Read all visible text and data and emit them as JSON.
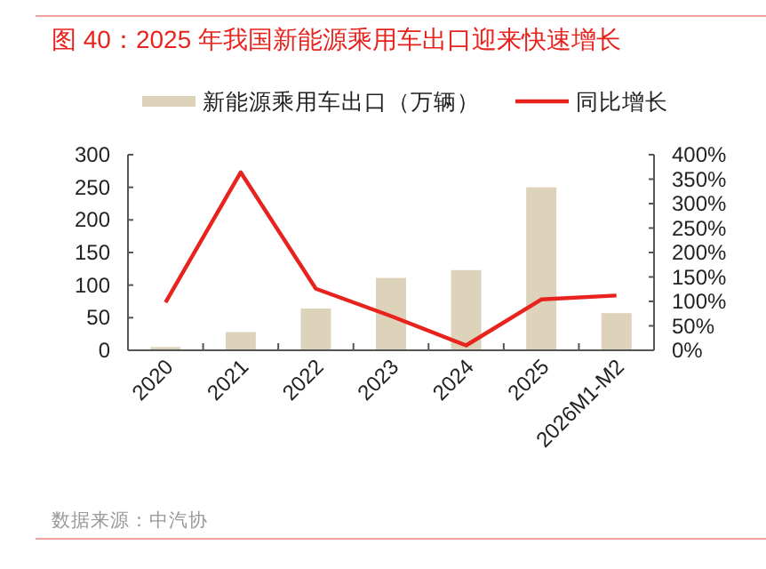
{
  "chart_data": {
    "type": "bar",
    "title": "图 40：2025 年我国新能源乘用车出口迎来快速增长",
    "categories": [
      "2020",
      "2021",
      "2022",
      "2023",
      "2024",
      "2025",
      "2026M1-M2"
    ],
    "series": [
      {
        "name": "新能源乘用车出口（万辆）",
        "color": "#ddd3bb",
        "values": [
          5,
          28,
          64,
          111,
          123,
          250,
          57
        ]
      },
      {
        "name": "同比增长",
        "type": "line",
        "axis": "y2",
        "color": "#e8231e",
        "values": [
          98,
          364,
          126,
          70,
          10,
          104,
          112
        ]
      }
    ],
    "ylim": [
      0,
      300
    ],
    "yticks": [
      0,
      50,
      100,
      150,
      200,
      250,
      300
    ],
    "y2lim": [
      0,
      400
    ],
    "y2ticks": [
      {
        "value": 0,
        "label": "0%"
      },
      {
        "value": 50,
        "label": "50%"
      },
      {
        "value": 100,
        "label": "100%"
      },
      {
        "value": 150,
        "label": "150%"
      },
      {
        "value": 200,
        "label": "200%"
      },
      {
        "value": 250,
        "label": "250%"
      },
      {
        "value": 300,
        "label": "300%"
      },
      {
        "value": 350,
        "label": "350%"
      },
      {
        "value": 400,
        "label": "400%"
      }
    ],
    "legend": "top",
    "grid": false,
    "annotations": [
      "数据来源：中汽协"
    ]
  }
}
